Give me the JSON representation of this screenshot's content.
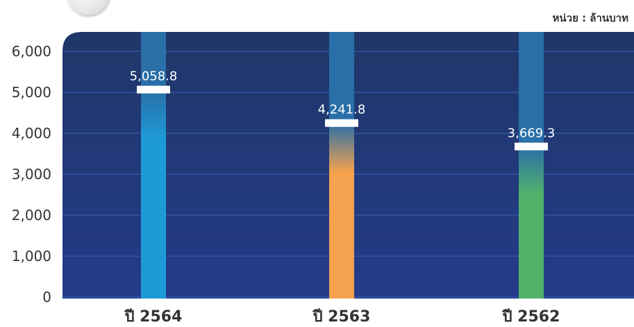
{
  "unit_label": "หน่วย : ล้านบาท",
  "chart_data": {
    "type": "bar",
    "title": "",
    "xlabel": "",
    "ylabel": "",
    "categories": [
      "ปี 2564",
      "ปี 2563",
      "ปี 2562"
    ],
    "values": [
      5058.8,
      4241.8,
      3669.3
    ],
    "value_labels": [
      "5,058.8",
      "4,241.8",
      "3,669.3"
    ],
    "ylim": [
      0,
      6000
    ],
    "yticks": [
      0,
      1000,
      2000,
      3000,
      4000,
      5000,
      6000
    ],
    "ytick_labels": [
      "0",
      "1,000",
      "2,000",
      "3,000",
      "4,000",
      "5,000",
      "6,000"
    ],
    "grid": true,
    "legend": "none",
    "colors": {
      "bars": [
        "#1e9ad6",
        "#f4a24e",
        "#52b26a"
      ],
      "bar_background": "#2a6fa8",
      "plot_background_top": "#1f3768",
      "plot_background_bottom": "#243b8a",
      "gridline": "#3a63b8"
    }
  }
}
